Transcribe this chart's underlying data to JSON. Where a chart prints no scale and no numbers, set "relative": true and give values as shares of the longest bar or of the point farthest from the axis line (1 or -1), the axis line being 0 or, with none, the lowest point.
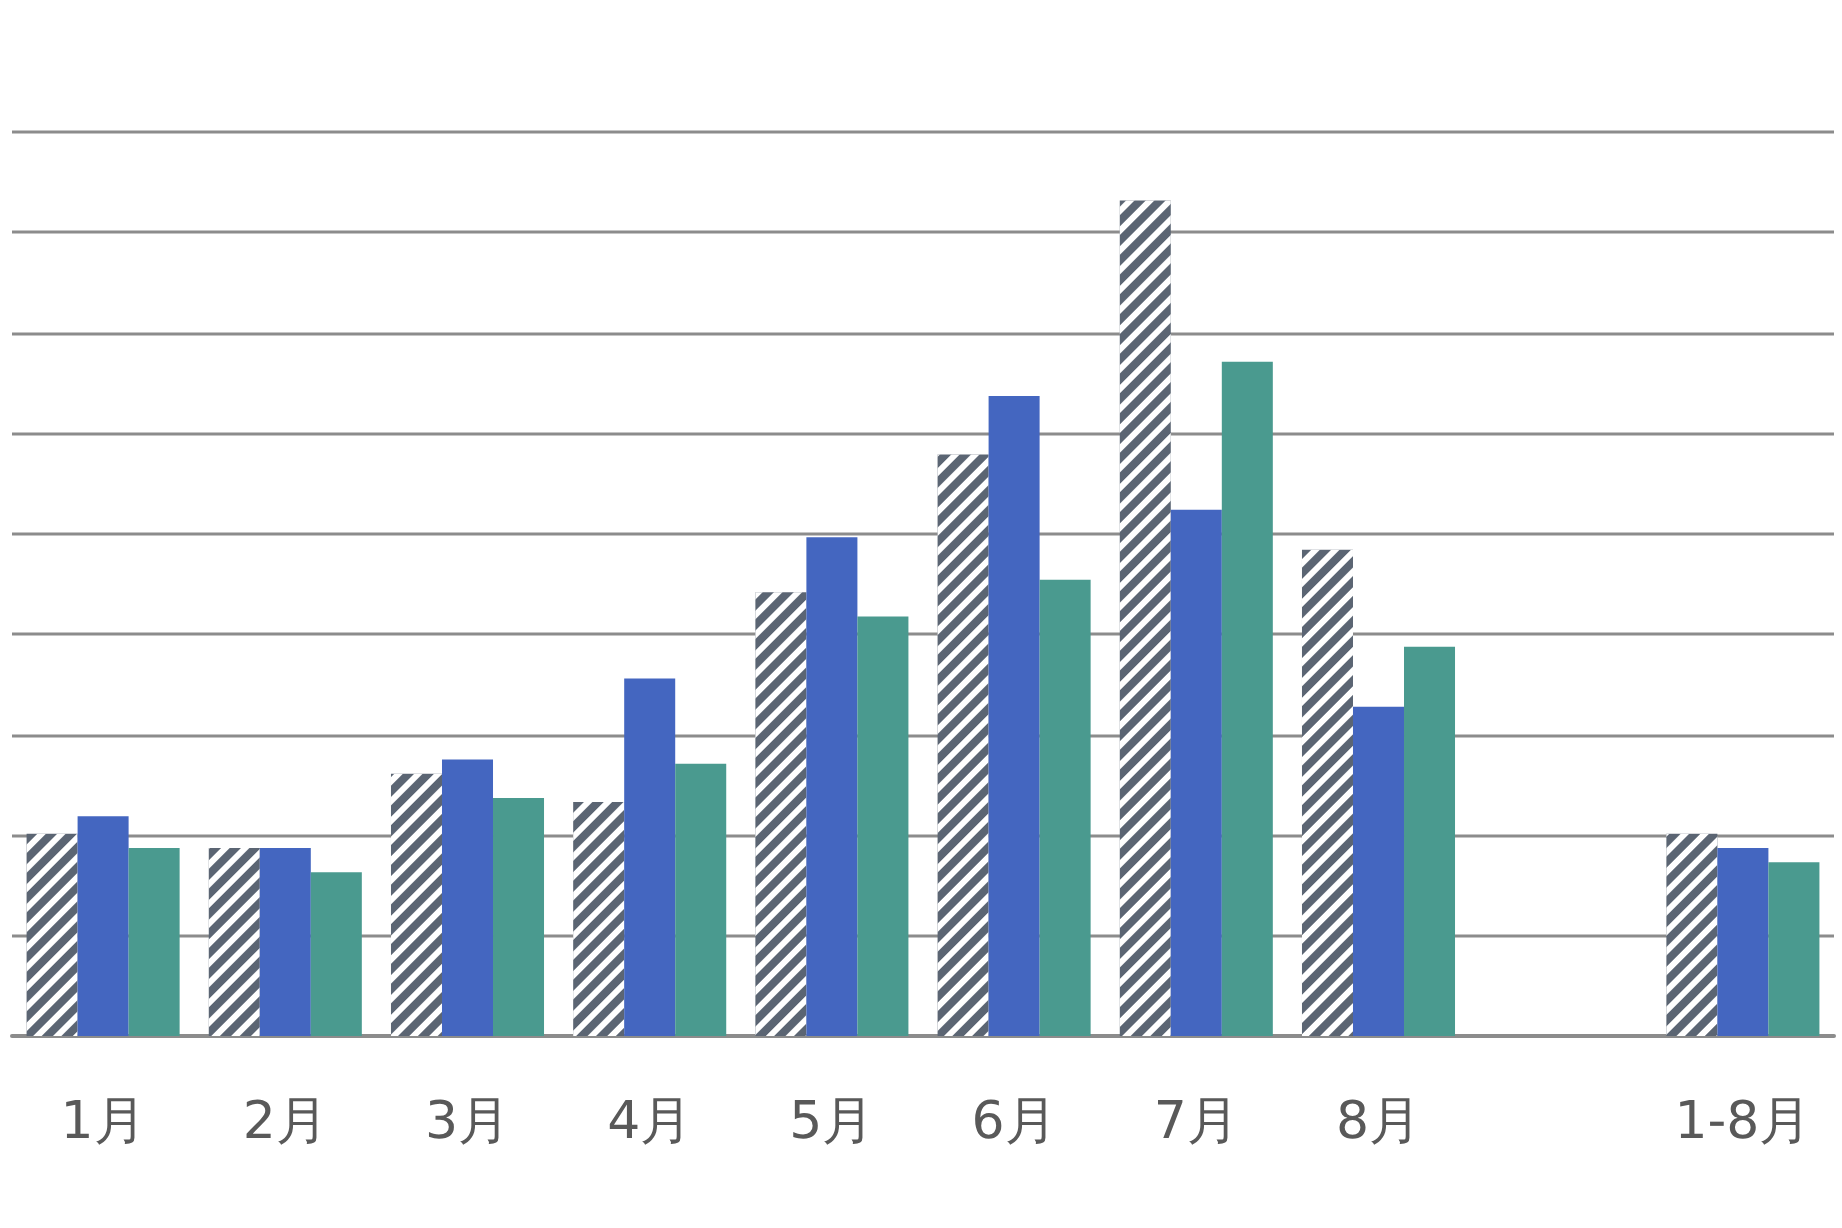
{
  "chart_data": {
    "type": "bar",
    "relative": true,
    "grid": "y",
    "categories": [
      "1月",
      "2月",
      "3月",
      "4月",
      "5月",
      "6月",
      "7月",
      "8月",
      null,
      "1-8月"
    ],
    "series": [
      {
        "color": "#5b6573",
        "values": [
          0.242,
          0.225,
          0.314,
          0.28,
          0.531,
          0.696,
          1,
          0.582,
          null,
          0.242
        ]
      },
      {
        "color": "#4466c0",
        "values": [
          0.263,
          0.225,
          0.331,
          0.428,
          0.597,
          0.766,
          0.63,
          0.394,
          null,
          0.225
        ]
      },
      {
        "color": "#4a9a8f",
        "values": [
          0.225,
          0.196,
          0.285,
          0.326,
          0.502,
          0.546,
          0.807,
          0.466,
          null,
          0.208
        ]
      }
    ]
  }
}
